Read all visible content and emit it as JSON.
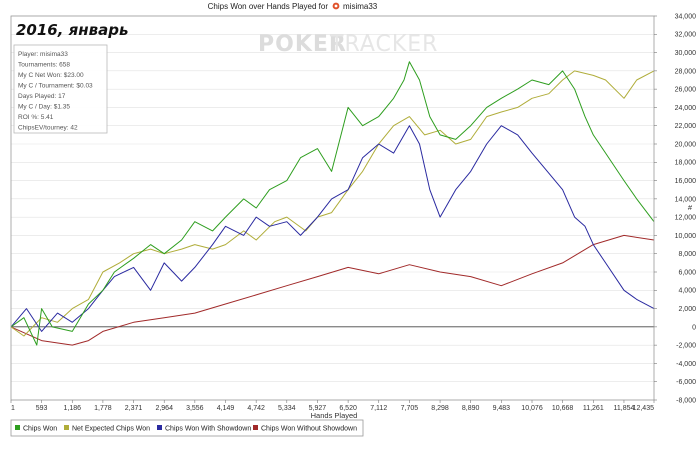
{
  "overlay_title": "2016, январь",
  "watermark": {
    "bold": "POKER",
    "light": "TRACKER"
  },
  "stats": [
    "Player: misima33",
    "Tournaments: 658",
    "My C Net Won: $23.00",
    "My C / Tournament: $0.03",
    "Days Played: 17",
    "My C / Day: $1.35",
    "ROI %: 5.41",
    "ChipsEV/tourney: 42"
  ],
  "colors": {
    "chips_won": "#2e9e1f",
    "net_expected": "#b0ad3a",
    "with_showdown": "#2a2aa0",
    "without_showdown": "#a12a2a",
    "grid": "#e2e2e2",
    "zero_line": "#444444",
    "title_icon": "#e0522b"
  },
  "chart_data": {
    "type": "line",
    "title": "Chips Won over Hands Played for",
    "title_player": "misima33",
    "title_icon": "poker-chip-icon",
    "xlabel": "Hands Played",
    "ylabel": "#",
    "xlim": [
      1,
      12435
    ],
    "ylim": [
      -8000,
      34000
    ],
    "x_ticks": [
      1,
      593,
      1186,
      1778,
      2371,
      2964,
      3556,
      4149,
      4742,
      5334,
      5927,
      6520,
      7112,
      7705,
      8298,
      8890,
      9483,
      10076,
      10668,
      11261,
      11854,
      12435
    ],
    "x_tick_labels": [
      "1",
      "593",
      "1,186",
      "1,778",
      "2,371",
      "2,964",
      "3,556",
      "4,149",
      "4,742",
      "5,334",
      "5,927",
      "6,520",
      "7,112",
      "7,705",
      "8,298",
      "8,890",
      "9,483",
      "10,076",
      "10,668",
      "11,261",
      "11,854",
      "12,435"
    ],
    "y_ticks": [
      -8000,
      -6000,
      -4000,
      -2000,
      0,
      2000,
      4000,
      6000,
      8000,
      10000,
      12000,
      14000,
      16000,
      18000,
      20000,
      22000,
      24000,
      26000,
      28000,
      30000,
      32000,
      34000
    ],
    "y_tick_labels": [
      "-8,000",
      "-6,000",
      "-4,000",
      "-2,000",
      "0",
      "2,000",
      "4,000",
      "6,000",
      "8,000",
      "10,000",
      "12,000",
      "14,000",
      "16,000",
      "18,000",
      "20,000",
      "22,000",
      "24,000",
      "26,000",
      "28,000",
      "30,000",
      "32,000",
      "34,000"
    ],
    "grid": true,
    "legend_position": "bottom-left",
    "series": [
      {
        "name": "Chips Won",
        "color_key": "chips_won",
        "x": [
          1,
          250,
          500,
          593,
          800,
          1186,
          1500,
          1778,
          2000,
          2371,
          2700,
          2964,
          3300,
          3556,
          3900,
          4149,
          4500,
          4742,
          5000,
          5334,
          5600,
          5927,
          6200,
          6520,
          6800,
          7112,
          7400,
          7600,
          7705,
          7900,
          8100,
          8298,
          8600,
          8890,
          9200,
          9483,
          9800,
          10076,
          10400,
          10668,
          10900,
          11100,
          11261,
          11500,
          11854,
          12100,
          12435
        ],
        "y": [
          0,
          1000,
          -2000,
          2000,
          0,
          -500,
          2500,
          4000,
          6000,
          7500,
          9000,
          8000,
          9500,
          11500,
          10500,
          12000,
          14000,
          13000,
          15000,
          16000,
          18500,
          19500,
          17000,
          24000,
          22000,
          23000,
          25000,
          27000,
          29000,
          27000,
          23000,
          21000,
          20500,
          22000,
          24000,
          25000,
          26000,
          27000,
          26500,
          28000,
          26000,
          23000,
          21000,
          19000,
          16000,
          14000,
          11500
        ]
      },
      {
        "name": "Net Expected Chips Won",
        "color_key": "net_expected",
        "x": [
          1,
          250,
          593,
          900,
          1186,
          1500,
          1778,
          2100,
          2371,
          2700,
          2964,
          3300,
          3556,
          3900,
          4149,
          4500,
          4742,
          5100,
          5334,
          5700,
          5927,
          6200,
          6520,
          6800,
          7112,
          7400,
          7705,
          8000,
          8298,
          8600,
          8890,
          9200,
          9483,
          9800,
          10076,
          10400,
          10668,
          10900,
          11261,
          11500,
          11854,
          12100,
          12435
        ],
        "y": [
          0,
          -1000,
          1000,
          500,
          2000,
          3000,
          6000,
          7000,
          8000,
          8500,
          8000,
          8500,
          9000,
          8500,
          9000,
          10500,
          9500,
          11500,
          12000,
          10500,
          12000,
          12500,
          15000,
          17000,
          20000,
          22000,
          23000,
          21000,
          21500,
          20000,
          20500,
          23000,
          23500,
          24000,
          25000,
          25500,
          27000,
          28000,
          27500,
          27000,
          25000,
          27000,
          28000
        ]
      },
      {
        "name": "Chips Won With Showdown",
        "color_key": "with_showdown",
        "x": [
          1,
          300,
          593,
          900,
          1186,
          1500,
          1778,
          2000,
          2371,
          2700,
          2964,
          3300,
          3556,
          3900,
          4149,
          4500,
          4742,
          5000,
          5334,
          5600,
          5927,
          6200,
          6520,
          6800,
          7112,
          7400,
          7705,
          7900,
          8100,
          8298,
          8600,
          8890,
          9200,
          9483,
          9800,
          10076,
          10300,
          10668,
          10900,
          11100,
          11261,
          11500,
          11854,
          12100,
          12435
        ],
        "y": [
          0,
          2000,
          -500,
          1500,
          500,
          2000,
          4000,
          5500,
          6500,
          4000,
          7000,
          5000,
          6500,
          9000,
          11000,
          10000,
          12000,
          11000,
          11500,
          10000,
          12000,
          14000,
          15000,
          18500,
          20000,
          19000,
          22000,
          20000,
          15000,
          12000,
          15000,
          17000,
          20000,
          22000,
          21000,
          19000,
          17500,
          15000,
          12000,
          11000,
          9000,
          7000,
          4000,
          3000,
          2000
        ]
      },
      {
        "name": "Chips Won Without Showdown",
        "color_key": "without_showdown",
        "x": [
          1,
          593,
          1186,
          1500,
          1778,
          2371,
          2964,
          3556,
          4149,
          4742,
          5334,
          5927,
          6520,
          7112,
          7705,
          8298,
          8890,
          9483,
          10076,
          10668,
          11261,
          11854,
          12435
        ],
        "y": [
          0,
          -1500,
          -2000,
          -1500,
          -500,
          500,
          1000,
          1500,
          2500,
          3500,
          4500,
          5500,
          6500,
          5800,
          6800,
          6000,
          5500,
          4500,
          5800,
          7000,
          9000,
          10000,
          9500
        ]
      }
    ]
  }
}
